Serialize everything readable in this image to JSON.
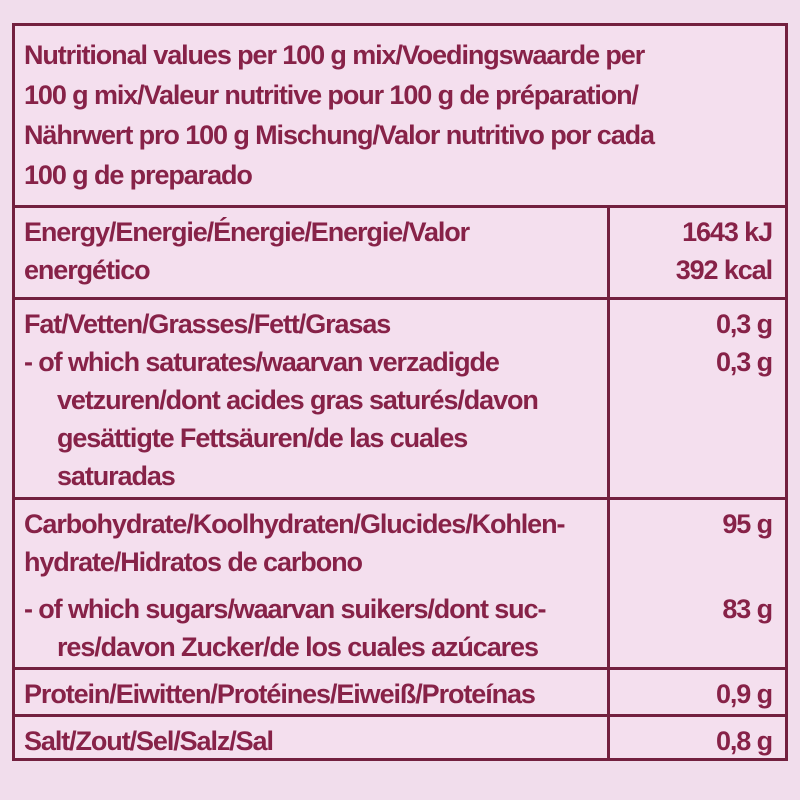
{
  "colors": {
    "page_background": "#f1ddec",
    "cell_background": "#f4dfee",
    "border": "#73203f",
    "text": "#872248"
  },
  "table": {
    "header": {
      "lines": [
        "Nutritional values per 100 g mix/Voedingswaarde per",
        "100 g mix/Valeur nutritive pour 100 g de préparation/",
        "Nährwert pro 100 g Mischung/Valor nutritivo por cada",
        "100 g de preparado"
      ]
    },
    "rows": [
      {
        "id": "energy",
        "label_lines": [
          "Energy/Energie/Énergie/Energie/Valor",
          "energético"
        ],
        "value_lines": [
          "1643 kJ",
          "392 kcal"
        ]
      },
      {
        "id": "fat",
        "label_lines": [
          "Fat/Vetten/Grasses/Fett/Grasas",
          "- of which saturates/waarvan verzadigde",
          "vetzuren/dont acides gras saturés/davon",
          "gesättigte Fettsäuren/de las cuales",
          "saturadas"
        ],
        "value_lines": [
          "0,3 g",
          "0,3 g"
        ]
      },
      {
        "id": "carbohydrate",
        "label_lines": [
          "Carbohydrate/Koolhydraten/Glucides/Kohlen-",
          "hydrate/Hidratos de carbono",
          "- of which sugars/waarvan suikers/dont suc-",
          "res/davon Zucker/de los cuales azúcares"
        ],
        "value_lines": [
          "95 g",
          "",
          "83 g"
        ]
      },
      {
        "id": "protein",
        "label_lines": [
          "Protein/Eiwitten/Protéines/Eiweiß/Proteínas"
        ],
        "value_lines": [
          "0,9 g"
        ]
      },
      {
        "id": "salt",
        "label_lines": [
          "Salt/Zout/Sel/Salz/Sal"
        ],
        "value_lines": [
          "0,8 g"
        ]
      }
    ]
  }
}
